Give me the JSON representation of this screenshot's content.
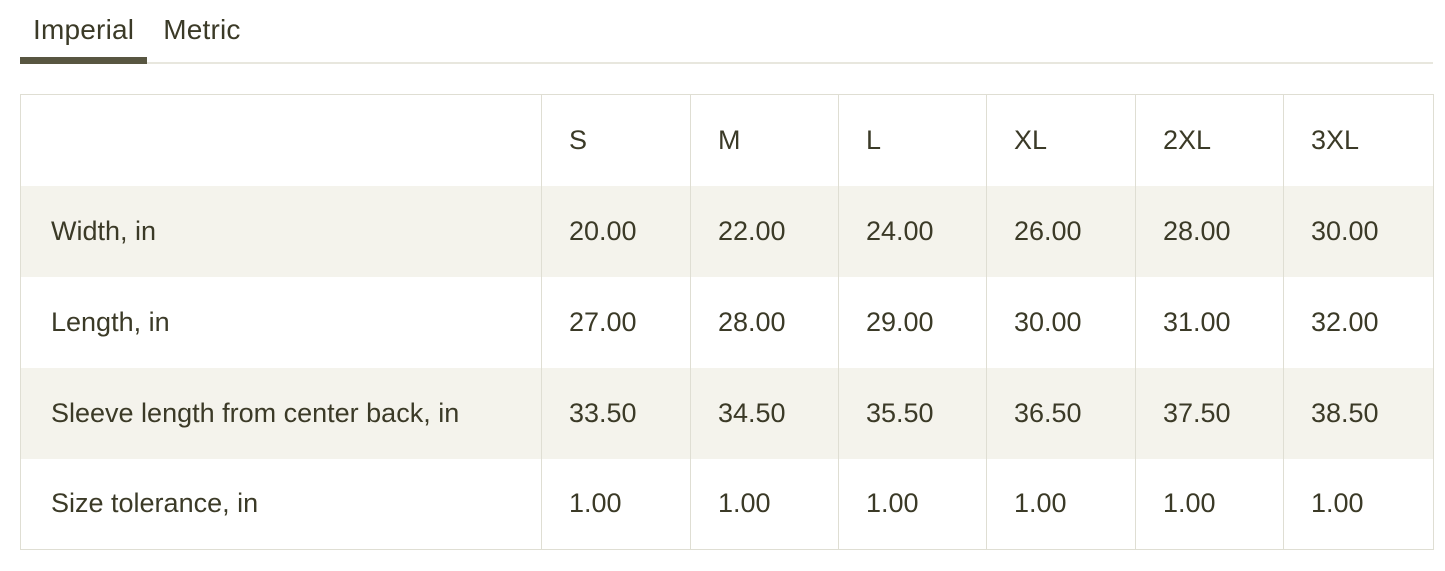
{
  "tabs": [
    {
      "label": "Imperial",
      "active": true
    },
    {
      "label": "Metric",
      "active": false
    }
  ],
  "size_table": {
    "columns": [
      "",
      "S",
      "M",
      "L",
      "XL",
      "2XL",
      "3XL"
    ],
    "rows": [
      {
        "label": "Width, in",
        "values": [
          "20.00",
          "22.00",
          "24.00",
          "26.00",
          "28.00",
          "30.00"
        ]
      },
      {
        "label": "Length, in",
        "values": [
          "27.00",
          "28.00",
          "29.00",
          "30.00",
          "31.00",
          "32.00"
        ]
      },
      {
        "label": "Sleeve length from center back, in",
        "values": [
          "33.50",
          "34.50",
          "35.50",
          "36.50",
          "37.50",
          "38.50"
        ]
      },
      {
        "label": "Size tolerance, in",
        "values": [
          "1.00",
          "1.00",
          "1.00",
          "1.00",
          "1.00",
          "1.00"
        ]
      }
    ]
  },
  "colors": {
    "text": "#3b3a27",
    "active_tab_underline": "#585641",
    "tab_divider": "#e8e7de",
    "table_border": "#dfded3",
    "row_stripe": "#f4f3ec",
    "background": "#ffffff"
  }
}
